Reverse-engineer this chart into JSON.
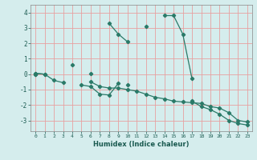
{
  "xlabel": "Humidex (Indice chaleur)",
  "x_values": [
    0,
    1,
    2,
    3,
    4,
    5,
    6,
    7,
    8,
    9,
    10,
    11,
    12,
    13,
    14,
    15,
    16,
    17,
    18,
    19,
    20,
    21,
    22,
    23
  ],
  "line1": [
    0.05,
    0.0,
    null,
    null,
    0.6,
    null,
    0.05,
    null,
    3.3,
    2.6,
    2.1,
    null,
    3.1,
    null,
    3.8,
    3.8,
    2.6,
    -0.3,
    null,
    null,
    null,
    null,
    null,
    null
  ],
  "line2": [
    0.05,
    0.0,
    -0.4,
    -0.55,
    null,
    -0.7,
    -0.8,
    -1.3,
    -1.35,
    -0.6,
    null,
    null,
    null,
    null,
    null,
    null,
    null,
    null,
    null,
    null,
    null,
    null,
    null,
    null
  ],
  "line3": [
    0.0,
    null,
    null,
    null,
    null,
    null,
    -0.5,
    -0.8,
    -0.9,
    -0.9,
    -1.0,
    -1.1,
    -1.3,
    -1.5,
    -1.6,
    -1.75,
    -1.8,
    -1.85,
    -1.9,
    -2.1,
    -2.2,
    -2.5,
    -3.0,
    -3.1
  ],
  "line4": [
    0.0,
    null,
    null,
    null,
    null,
    null,
    null,
    null,
    null,
    null,
    -0.7,
    null,
    null,
    null,
    null,
    null,
    null,
    -1.75,
    -2.1,
    -2.3,
    -2.6,
    -3.0,
    -3.2,
    -3.3
  ],
  "line_color": "#2a7a68",
  "bg_color": "#d5eded",
  "grid_color": "#e8a0a0",
  "ylim": [
    -3.7,
    4.5
  ],
  "xlim": [
    -0.5,
    23.5
  ],
  "yticks": [
    -3,
    -2,
    -1,
    0,
    1,
    2,
    3,
    4
  ],
  "ytick_labels": [
    "-3",
    "-2",
    "-1",
    "0",
    "1",
    "2",
    "3",
    "4"
  ],
  "xtick_labels": [
    "0",
    "1",
    "2",
    "3",
    "4",
    "5",
    "6",
    "7",
    "8",
    "9",
    "10",
    "11",
    "12",
    "13",
    "14",
    "15",
    "16",
    "17",
    "18",
    "19",
    "20",
    "21",
    "22",
    "23"
  ]
}
